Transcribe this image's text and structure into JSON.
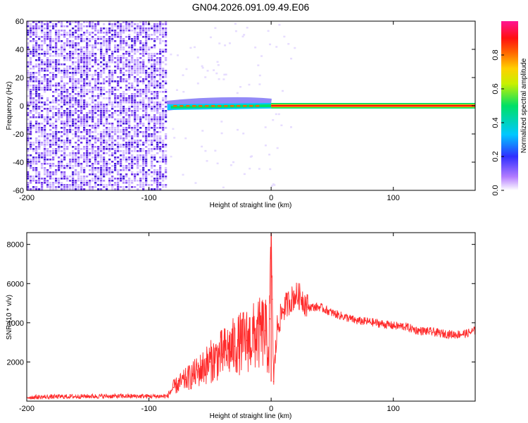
{
  "title": "GN04.2026.091.09.49.E06",
  "chart_data": [
    {
      "type": "heatmap",
      "name": "spectrogram",
      "xlabel": "Height of straight line (km)",
      "ylabel": "Frequency (Hz)",
      "xlim": [
        -200,
        167
      ],
      "ylim": [
        -60,
        60
      ],
      "xticks": [
        -200,
        -100,
        0,
        100
      ],
      "yticks": [
        60,
        40,
        20,
        0,
        -20,
        -40,
        -60
      ],
      "xtick_labels": [
        "-200",
        "-100",
        "0",
        "100"
      ],
      "ytick_labels": [
        "60",
        "40",
        "20",
        "0",
        "-20",
        "-40",
        "-60"
      ],
      "noise_region_x": [
        -200,
        -85
      ],
      "signal_line_frequency": 0,
      "colorbar": {
        "label": "Normalized spectral amplitude",
        "range": [
          0.0,
          1.0
        ],
        "ticks": [
          0.0,
          0.2,
          0.4,
          0.6,
          0.8
        ],
        "tick_labels": [
          "0.0",
          "0.2",
          "0.4",
          "0.6",
          "0.8"
        ]
      }
    },
    {
      "type": "line",
      "name": "snr",
      "xlabel": "Height of straight line (km)",
      "ylabel": "SNR (10 * v/v)",
      "xlim": [
        -200,
        167
      ],
      "ylim": [
        0,
        8600
      ],
      "xticks": [
        -200,
        -100,
        0,
        100
      ],
      "yticks": [
        2000,
        4000,
        6000,
        8000
      ],
      "xtick_labels": [
        "-200",
        "-100",
        "0",
        "100"
      ],
      "ytick_labels": [
        "2000",
        "4000",
        "6000",
        "8000"
      ],
      "color": "#ff2a2a",
      "series": [
        {
          "name": "SNR",
          "x": [
            -200,
            -150,
            -100,
            -85,
            -80,
            -70,
            -60,
            -50,
            -40,
            -30,
            -20,
            -10,
            -5,
            -2,
            -1,
            0,
            1,
            2,
            5,
            10,
            15,
            20,
            25,
            30,
            40,
            50,
            60,
            70,
            80,
            90,
            100,
            110,
            120,
            130,
            140,
            150,
            160,
            167
          ],
          "y": [
            200,
            250,
            250,
            250,
            700,
            1100,
            1500,
            2000,
            2400,
            2800,
            3100,
            3400,
            3600,
            2500,
            4200,
            8500,
            5200,
            1000,
            3800,
            4700,
            5100,
            5400,
            5300,
            4800,
            4800,
            4500,
            4300,
            4100,
            4050,
            3950,
            3850,
            3800,
            3600,
            3550,
            3450,
            3400,
            3450,
            3600
          ]
        }
      ]
    }
  ]
}
